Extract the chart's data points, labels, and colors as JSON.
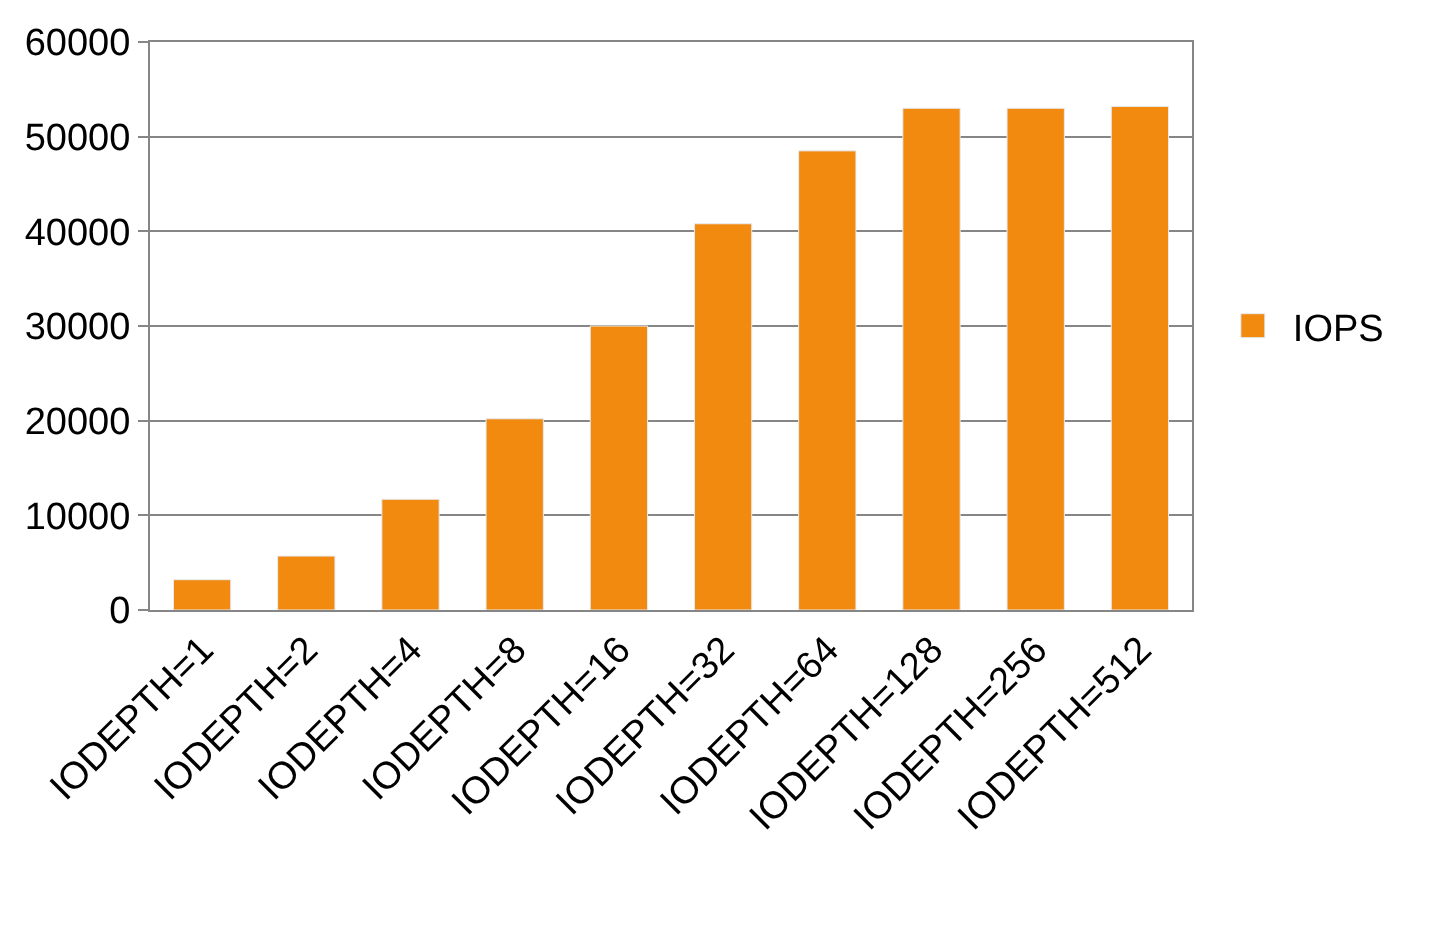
{
  "chart_data": {
    "type": "bar",
    "categories": [
      "IODEPTH=1",
      "IODEPTH=2",
      "IODEPTH=4",
      "IODEPTH=8",
      "IODEPTH=16",
      "IODEPTH=32",
      "IODEPTH=64",
      "IODEPTH=128",
      "IODEPTH=256",
      "IODEPTH=512"
    ],
    "series": [
      {
        "name": "IOPS",
        "color": "#f28a0f",
        "values": [
          3200,
          5700,
          11700,
          20200,
          30000,
          40800,
          48500,
          53000,
          53000,
          53200
        ]
      }
    ],
    "ylim": [
      0,
      60000
    ],
    "yticks": [
      0,
      10000,
      20000,
      30000,
      40000,
      50000,
      60000
    ],
    "grid": "y",
    "legend": "right"
  }
}
